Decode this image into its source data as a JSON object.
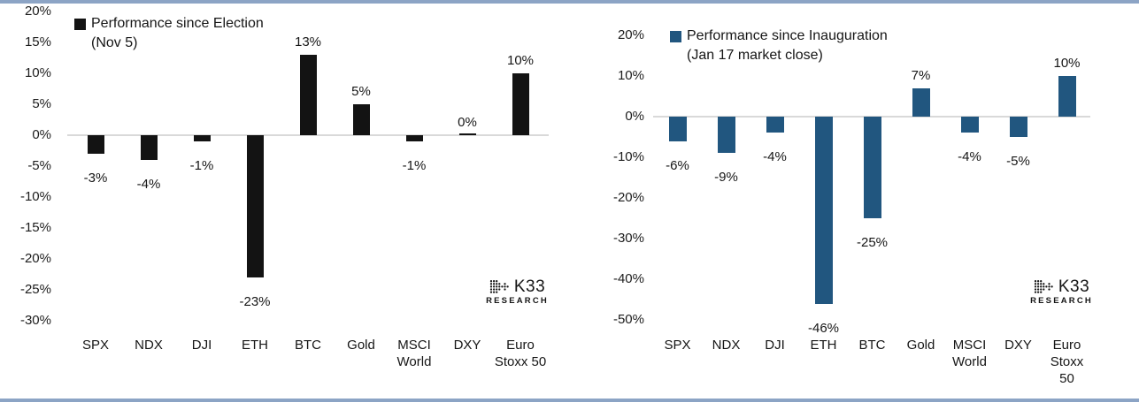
{
  "page": {
    "background": "#ffffff",
    "rule_color": "#8ca4c5"
  },
  "logo": {
    "name": "K33",
    "sub": "RESEARCH"
  },
  "chart_data": [
    {
      "type": "bar",
      "title": "Performance since Election (Nov 5)",
      "legend": {
        "line1": "Performance since Election",
        "line2": "(Nov 5)"
      },
      "legend_position": "top-left",
      "categories": [
        "SPX",
        "NDX",
        "DJI",
        "ETH",
        "BTC",
        "Gold",
        "MSCI World",
        "DXY",
        "Euro Stoxx 50"
      ],
      "series": [
        {
          "name": "Performance since Election (Nov 5)",
          "values": [
            -3,
            -4,
            -1,
            -23,
            13,
            5,
            -1,
            0,
            10
          ]
        }
      ],
      "values": [
        -3,
        -4,
        -1,
        -23,
        13,
        5,
        -1,
        0,
        10
      ],
      "value_labels": [
        "-3%",
        "-4%",
        "-1%",
        "-23%",
        "13%",
        "5%",
        "-1%",
        "0%",
        "10%"
      ],
      "ytick_values": [
        20,
        15,
        10,
        5,
        0,
        -5,
        -10,
        -15,
        -20,
        -25,
        -30
      ],
      "ytick_labels": [
        "20%",
        "15%",
        "10%",
        "5%",
        "0%",
        "-5%",
        "-10%",
        "-15%",
        "-20%",
        "-25%",
        "-30%"
      ],
      "ylim": [
        -30,
        20
      ],
      "ylabel": "",
      "xlabel": "",
      "grid": false,
      "bar_color": "#131313",
      "baseline_color": "#d9d9d9"
    },
    {
      "type": "bar",
      "title": "Performance since Inauguration (Jan 17 market close)",
      "legend": {
        "line1": "Performance since Inauguration",
        "line2": "(Jan 17 market close)"
      },
      "legend_position": "top-left",
      "categories": [
        "SPX",
        "NDX",
        "DJI",
        "ETH",
        "BTC",
        "Gold",
        "MSCI World",
        "DXY",
        "Euro Stoxx 50"
      ],
      "series": [
        {
          "name": "Performance since Inauguration (Jan 17 market close)",
          "values": [
            -6,
            -9,
            -4,
            -46,
            -25,
            7,
            -4,
            -5,
            10
          ]
        }
      ],
      "values": [
        -6,
        -9,
        -4,
        -46,
        -25,
        7,
        -4,
        -5,
        10
      ],
      "value_labels": [
        "-6%",
        "-9%",
        "-4%",
        "-46%",
        "-25%",
        "7%",
        "-4%",
        "-5%",
        "10%"
      ],
      "ytick_values": [
        20,
        10,
        0,
        -10,
        -20,
        -30,
        -40,
        -50
      ],
      "ytick_labels": [
        "20%",
        "10%",
        "0%",
        "-10%",
        "-20%",
        "-30%",
        "-40%",
        "-50%"
      ],
      "ylim": [
        -50,
        20
      ],
      "ylabel": "",
      "xlabel": "",
      "grid": false,
      "bar_color": "#21567f",
      "baseline_color": "#d9d9d9"
    }
  ]
}
